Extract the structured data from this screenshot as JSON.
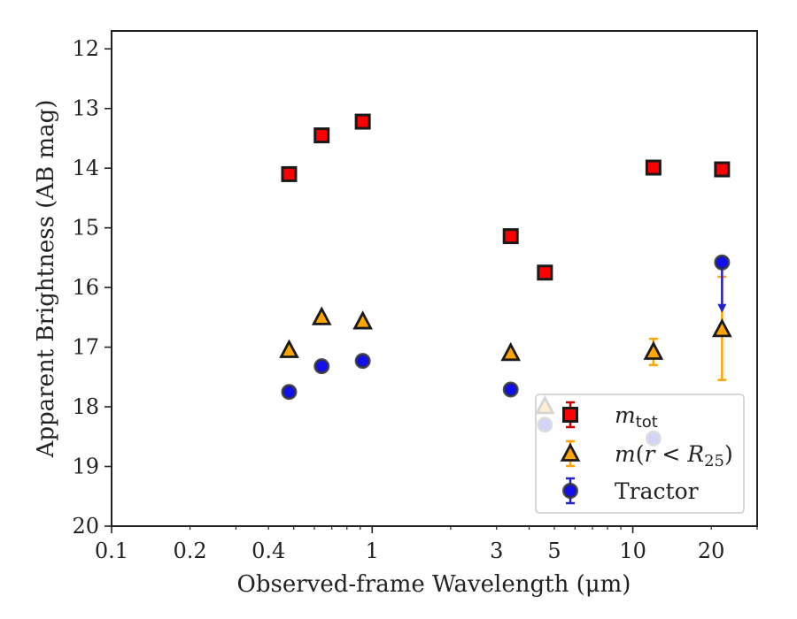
{
  "chart_data": {
    "type": "scatter",
    "xlabel": "Observed-frame Wavelength (μm)",
    "ylabel": "Apparent Brightness (AB mag)",
    "xscale": "log",
    "xlim": [
      0.1,
      30
    ],
    "ylim": [
      20,
      11.7
    ],
    "y_inverted": true,
    "grid": false,
    "legend_position": "lower-right",
    "x_ticks": [
      0.1,
      0.2,
      0.4,
      1,
      3,
      5,
      10,
      20
    ],
    "x_tick_labels": [
      "0.1",
      "0.2",
      "0.4",
      "1",
      "3",
      "5",
      "10",
      "20"
    ],
    "y_ticks": [
      12,
      13,
      14,
      15,
      16,
      17,
      18,
      19,
      20
    ],
    "y_tick_labels": [
      "12",
      "13",
      "14",
      "15",
      "16",
      "17",
      "18",
      "19",
      "20"
    ],
    "series": [
      {
        "name": "m_tot",
        "legend_label": "mtot",
        "marker": "square",
        "color": "#ff0000",
        "edge_color": "#1a1a1a",
        "err_color": "#cc0000",
        "points": [
          {
            "x": 0.48,
            "y": 14.1
          },
          {
            "x": 0.64,
            "y": 13.45
          },
          {
            "x": 0.92,
            "y": 13.22
          },
          {
            "x": 3.4,
            "y": 15.14
          },
          {
            "x": 4.6,
            "y": 15.75
          },
          {
            "x": 12.0,
            "y": 13.99
          },
          {
            "x": 22.0,
            "y": 14.02
          }
        ]
      },
      {
        "name": "m(r<R25)",
        "legend_label": "m(r<R25)",
        "marker": "triangle",
        "color": "#ffa500",
        "edge_color": "#1a1a1a",
        "err_color": "#ffa500",
        "points": [
          {
            "x": 0.48,
            "y": 17.05
          },
          {
            "x": 0.64,
            "y": 16.5
          },
          {
            "x": 0.92,
            "y": 16.57
          },
          {
            "x": 3.4,
            "y": 17.1
          },
          {
            "x": 4.6,
            "y": 17.99
          },
          {
            "x": 12.0,
            "y": 17.08,
            "yerr": 0.22
          },
          {
            "x": 22.0,
            "y": 16.7,
            "yerr_low": 0.85,
            "yerr_high": 0.88
          }
        ]
      },
      {
        "name": "Tractor",
        "legend_label": "Tractor",
        "marker": "circle",
        "color": "#1010ee",
        "edge_color": "#333333",
        "err_color": "#2222cc",
        "points": [
          {
            "x": 0.48,
            "y": 17.75
          },
          {
            "x": 0.64,
            "y": 17.32
          },
          {
            "x": 0.92,
            "y": 17.23
          },
          {
            "x": 3.4,
            "y": 17.71
          },
          {
            "x": 4.6,
            "y": 18.3
          },
          {
            "x": 12.0,
            "y": 18.53
          },
          {
            "x": 22.0,
            "y": 15.58,
            "upper_limit": true
          }
        ]
      }
    ]
  }
}
